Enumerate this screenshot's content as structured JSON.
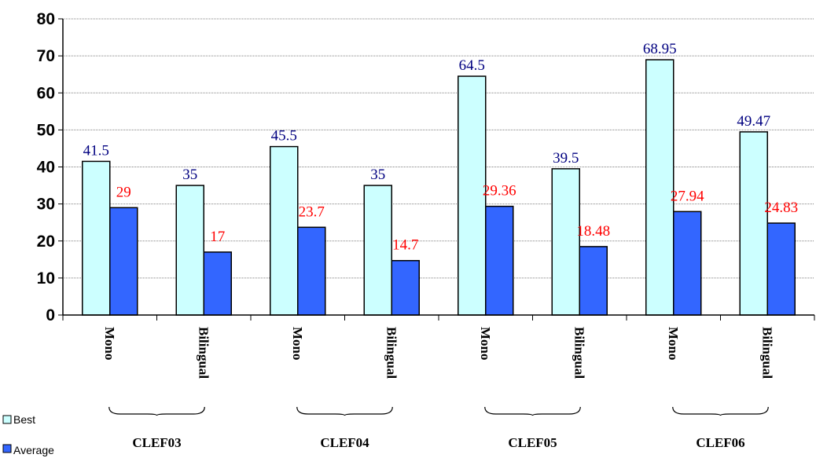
{
  "chart_data": {
    "type": "bar",
    "categories": [
      "Mono",
      "Bilingual",
      "Mono",
      "Bilingual",
      "Mono",
      "Bilingual",
      "Mono",
      "Bilingual"
    ],
    "groups": [
      "CLEF03",
      "CLEF04",
      "CLEF05",
      "CLEF06"
    ],
    "series": [
      {
        "name": "Best",
        "values": [
          41.5,
          35,
          45.5,
          35,
          64.5,
          39.5,
          68.95,
          49.47
        ],
        "labels": [
          "41.5",
          "35",
          "45.5",
          "35",
          "64.5",
          "39.5",
          "68.95",
          "49.47"
        ]
      },
      {
        "name": "Average",
        "values": [
          29,
          17,
          23.7,
          14.7,
          29.36,
          18.48,
          27.94,
          24.83
        ],
        "labels": [
          "29",
          "17",
          "23.7",
          "14.7",
          "29.36",
          "18.48",
          "27.94",
          "24.83"
        ]
      }
    ],
    "yticks": [
      "0",
      "10",
      "20",
      "30",
      "40",
      "50",
      "60",
      "70",
      "80"
    ],
    "ylim": [
      0,
      80
    ],
    "grid": true,
    "legend_position": "bottom-left",
    "colors": {
      "best_fill": "#ccffff",
      "average_fill": "#3366ff",
      "best_label": "#000080",
      "average_label": "#ff0000",
      "bar_stroke": "#000000"
    }
  }
}
